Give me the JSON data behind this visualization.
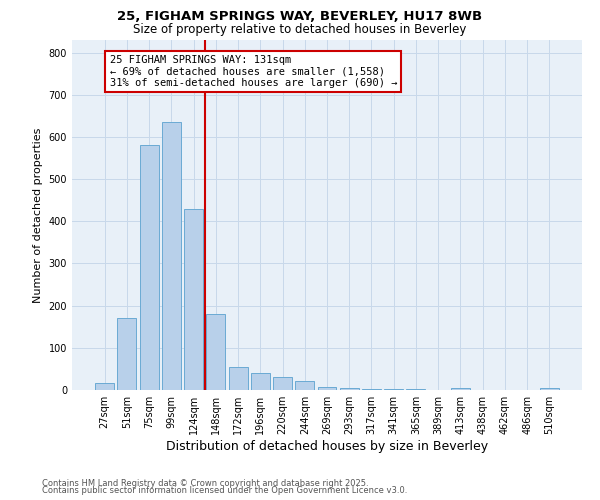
{
  "title_line1": "25, FIGHAM SPRINGS WAY, BEVERLEY, HU17 8WB",
  "title_line2": "Size of property relative to detached houses in Beverley",
  "xlabel": "Distribution of detached houses by size in Beverley",
  "ylabel": "Number of detached properties",
  "bar_color": "#b8d0ea",
  "bar_edge_color": "#6aaad4",
  "background_color": "#e8f0f8",
  "categories": [
    "27sqm",
    "51sqm",
    "75sqm",
    "99sqm",
    "124sqm",
    "148sqm",
    "172sqm",
    "196sqm",
    "220sqm",
    "244sqm",
    "269sqm",
    "293sqm",
    "317sqm",
    "341sqm",
    "365sqm",
    "389sqm",
    "413sqm",
    "438sqm",
    "462sqm",
    "486sqm",
    "510sqm"
  ],
  "values": [
    17,
    170,
    580,
    635,
    430,
    180,
    55,
    40,
    32,
    22,
    8,
    5,
    3,
    3,
    2,
    1,
    4,
    1,
    0,
    0,
    4
  ],
  "vline_x": 4.5,
  "vline_color": "#cc0000",
  "annotation_text": "25 FIGHAM SPRINGS WAY: 131sqm\n← 69% of detached houses are smaller (1,558)\n31% of semi-detached houses are larger (690) →",
  "ylim": [
    0,
    830
  ],
  "yticks": [
    0,
    100,
    200,
    300,
    400,
    500,
    600,
    700,
    800
  ],
  "footer_line1": "Contains HM Land Registry data © Crown copyright and database right 2025.",
  "footer_line2": "Contains public sector information licensed under the Open Government Licence v3.0.",
  "grid_color": "#c8d8ea",
  "title_fontsize": 9.5,
  "subtitle_fontsize": 8.5,
  "ylabel_fontsize": 8,
  "xlabel_fontsize": 9,
  "tick_fontsize": 7,
  "annotation_fontsize": 7.5,
  "footer_fontsize": 6
}
